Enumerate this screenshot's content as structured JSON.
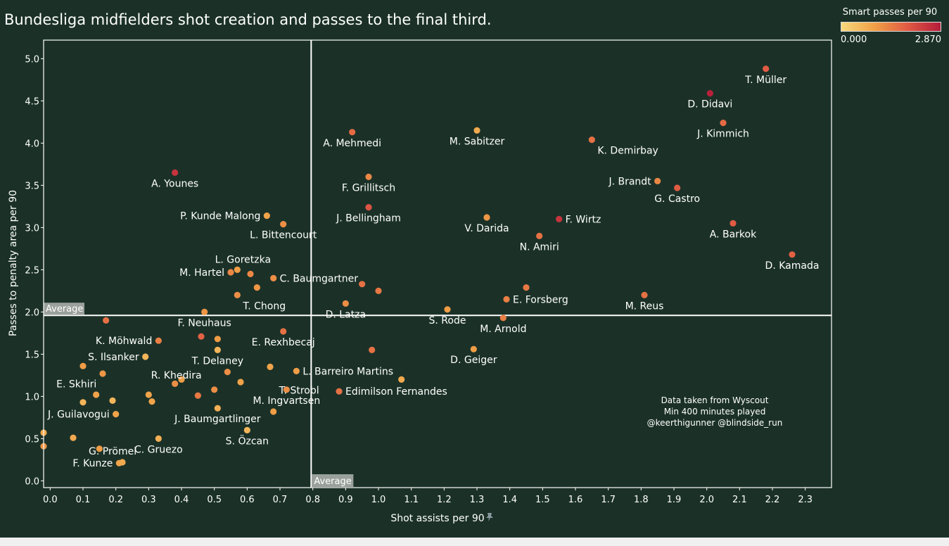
{
  "chart_data": {
    "type": "scatter",
    "title": "Bundesliga midfielders shot creation and passes to the final third.",
    "xlabel": "Shot assists per 90",
    "ylabel": "Passes to penalty area per 90",
    "xlim": [
      -0.02,
      2.38
    ],
    "ylim": [
      -0.08,
      5.22
    ],
    "xticks": [
      "0.0",
      "0.1",
      "0.2",
      "0.3",
      "0.4",
      "0.5",
      "0.6",
      "0.7",
      "0.8",
      "0.9",
      "1.0",
      "1.1",
      "1.2",
      "1.3",
      "1.4",
      "1.5",
      "1.6",
      "1.7",
      "1.8",
      "1.9",
      "2.0",
      "2.1",
      "2.2",
      "2.3"
    ],
    "yticks": [
      "0.0",
      "0.5",
      "1.0",
      "1.5",
      "2.0",
      "2.5",
      "3.0",
      "3.5",
      "4.0",
      "4.5",
      "5.0"
    ],
    "grid": false,
    "reference_lines": {
      "x_average": 0.795,
      "y_average": 1.96,
      "x_label": "Average",
      "y_label": "Average"
    },
    "color_scale": {
      "title": "Smart passes per 90",
      "min_label": "0.000",
      "max_label": "2.870",
      "min": 0,
      "max": 2.87,
      "colors": [
        "#f7d87c",
        "#f0a046",
        "#e05a43",
        "#b51c3a"
      ]
    },
    "annotation": [
      "Data taken from Wyscout",
      "Min 400 minutes played",
      "@keerthigunner @blindside_run"
    ],
    "points": [
      {
        "name": "T. Müller",
        "x": 2.18,
        "y": 4.88,
        "c": 1.9,
        "pos": "below"
      },
      {
        "name": "D. Didavi",
        "x": 2.01,
        "y": 4.59,
        "c": 2.8,
        "pos": "below"
      },
      {
        "name": "J. Kimmich",
        "x": 2.05,
        "y": 4.24,
        "c": 1.7,
        "pos": "below"
      },
      {
        "name": "K. Demirbay",
        "x": 1.65,
        "y": 4.04,
        "c": 1.6,
        "pos": "below-right"
      },
      {
        "name": "M. Sabitzer",
        "x": 1.3,
        "y": 4.15,
        "c": 0.8,
        "pos": "below"
      },
      {
        "name": "A. Mehmedi",
        "x": 0.92,
        "y": 4.13,
        "c": 1.7,
        "pos": "below"
      },
      {
        "name": "A. Younes",
        "x": 0.38,
        "y": 3.65,
        "c": 2.5,
        "pos": "below"
      },
      {
        "name": "J. Brandt",
        "x": 1.85,
        "y": 3.55,
        "c": 1.3,
        "pos": "left"
      },
      {
        "name": "G. Castro",
        "x": 1.91,
        "y": 3.47,
        "c": 1.9,
        "pos": "below"
      },
      {
        "name": "F. Grillitsch",
        "x": 0.97,
        "y": 3.6,
        "c": 1.3,
        "pos": "below"
      },
      {
        "name": "J. Bellingham",
        "x": 0.97,
        "y": 3.24,
        "c": 2.0,
        "pos": "below"
      },
      {
        "name": "P. Kunde Malong",
        "x": 0.66,
        "y": 3.14,
        "c": 0.9,
        "pos": "left"
      },
      {
        "name": "L. Bittencourt",
        "x": 0.71,
        "y": 3.04,
        "c": 1.2,
        "pos": "below"
      },
      {
        "name": "V. Darida",
        "x": 1.33,
        "y": 3.12,
        "c": 1.1,
        "pos": "below"
      },
      {
        "name": "F. Wirtz",
        "x": 1.55,
        "y": 3.1,
        "c": 2.5,
        "pos": "right"
      },
      {
        "name": "N. Amiri",
        "x": 1.49,
        "y": 2.9,
        "c": 1.6,
        "pos": "below"
      },
      {
        "name": "A. Barkok",
        "x": 2.08,
        "y": 3.05,
        "c": 1.9,
        "pos": "below"
      },
      {
        "name": "D. Kamada",
        "x": 2.26,
        "y": 2.68,
        "c": 1.8,
        "pos": "below"
      },
      {
        "name": "L. Goretzka",
        "x": 0.57,
        "y": 2.5,
        "c": 1.0,
        "pos": "above-right"
      },
      {
        "name": "M. Hartel",
        "x": 0.55,
        "y": 2.47,
        "c": 1.3,
        "pos": "left"
      },
      {
        "name": "",
        "x": 0.61,
        "y": 2.45,
        "c": 1.3,
        "pos": "none"
      },
      {
        "name": "C. Baumgartner",
        "x": 0.68,
        "y": 2.4,
        "c": 1.2,
        "pos": "right"
      },
      {
        "name": "",
        "x": 0.63,
        "y": 2.29,
        "c": 1.1,
        "pos": "none"
      },
      {
        "name": "T. Chong",
        "x": 0.57,
        "y": 2.2,
        "c": 1.2,
        "pos": "below-right"
      },
      {
        "name": "",
        "x": 0.95,
        "y": 2.33,
        "c": 1.6,
        "pos": "none"
      },
      {
        "name": "",
        "x": 1.0,
        "y": 2.25,
        "c": 1.5,
        "pos": "none"
      },
      {
        "name": "D. Latza",
        "x": 0.9,
        "y": 2.1,
        "c": 1.2,
        "pos": "below"
      },
      {
        "name": "E. Forsberg",
        "x": 1.39,
        "y": 2.15,
        "c": 1.4,
        "pos": "right"
      },
      {
        "name": "",
        "x": 1.45,
        "y": 2.29,
        "c": 1.5,
        "pos": "none"
      },
      {
        "name": "M. Reus",
        "x": 1.81,
        "y": 2.2,
        "c": 1.6,
        "pos": "below"
      },
      {
        "name": "S. Rode",
        "x": 1.21,
        "y": 2.03,
        "c": 1.0,
        "pos": "below"
      },
      {
        "name": "M. Arnold",
        "x": 1.38,
        "y": 1.93,
        "c": 1.4,
        "pos": "below"
      },
      {
        "name": "F. Neuhaus",
        "x": 0.47,
        "y": 2.0,
        "c": 1.1,
        "pos": "below"
      },
      {
        "name": "",
        "x": 0.17,
        "y": 1.9,
        "c": 1.6,
        "pos": "none"
      },
      {
        "name": "E. Rexhbecaj",
        "x": 0.71,
        "y": 1.77,
        "c": 1.6,
        "pos": "below"
      },
      {
        "name": "K. Möhwald",
        "x": 0.33,
        "y": 1.66,
        "c": 1.4,
        "pos": "left"
      },
      {
        "name": "",
        "x": 0.46,
        "y": 1.71,
        "c": 1.8,
        "pos": "none"
      },
      {
        "name": "",
        "x": 0.51,
        "y": 1.68,
        "c": 1.0,
        "pos": "none"
      },
      {
        "name": "T. Delaney",
        "x": 0.51,
        "y": 1.55,
        "c": 0.6,
        "pos": "below"
      },
      {
        "name": "",
        "x": 0.98,
        "y": 1.55,
        "c": 1.6,
        "pos": "none"
      },
      {
        "name": "D. Geiger",
        "x": 1.29,
        "y": 1.56,
        "c": 1.0,
        "pos": "below"
      },
      {
        "name": "S. Ilsanker",
        "x": 0.29,
        "y": 1.47,
        "c": 0.6,
        "pos": "left"
      },
      {
        "name": "R. Khedira",
        "x": 0.29,
        "y": 1.38,
        "c": 0.6,
        "pos": "label-only"
      },
      {
        "name": "",
        "x": 0.1,
        "y": 1.36,
        "c": 1.0,
        "pos": "none"
      },
      {
        "name": "",
        "x": 0.16,
        "y": 1.27,
        "c": 1.1,
        "pos": "none"
      },
      {
        "name": "",
        "x": 0.54,
        "y": 1.29,
        "c": 1.2,
        "pos": "none"
      },
      {
        "name": "",
        "x": 0.67,
        "y": 1.35,
        "c": 0.9,
        "pos": "none"
      },
      {
        "name": "L. Barreiro Martins",
        "x": 0.75,
        "y": 1.3,
        "c": 1.0,
        "pos": "right"
      },
      {
        "name": "T. Strobl",
        "x": 0.68,
        "y": 1.2,
        "c": 1.0,
        "pos": "label-only"
      },
      {
        "name": "",
        "x": 1.07,
        "y": 1.2,
        "c": 0.8,
        "pos": "none"
      },
      {
        "name": "E. Skhiri",
        "x": 0.24,
        "y": 1.15,
        "c": 0.8,
        "pos": "label-left-far"
      },
      {
        "name": "",
        "x": 0.38,
        "y": 1.15,
        "c": 1.2,
        "pos": "none"
      },
      {
        "name": "",
        "x": 0.4,
        "y": 1.2,
        "c": 1.0,
        "pos": "none"
      },
      {
        "name": "",
        "x": 0.58,
        "y": 1.17,
        "c": 0.9,
        "pos": "none"
      },
      {
        "name": "",
        "x": 0.14,
        "y": 1.02,
        "c": 0.9,
        "pos": "none"
      },
      {
        "name": "",
        "x": 0.3,
        "y": 1.02,
        "c": 0.9,
        "pos": "none"
      },
      {
        "name": "",
        "x": 0.45,
        "y": 1.01,
        "c": 1.5,
        "pos": "none"
      },
      {
        "name": "",
        "x": 0.5,
        "y": 1.08,
        "c": 1.2,
        "pos": "none"
      },
      {
        "name": "M. Ingvartsen",
        "x": 0.72,
        "y": 1.08,
        "c": 1.2,
        "pos": "below"
      },
      {
        "name": "Edimilson Fernandes",
        "x": 0.88,
        "y": 1.06,
        "c": 1.6,
        "pos": "right"
      },
      {
        "name": "",
        "x": 0.1,
        "y": 0.93,
        "c": 0.6,
        "pos": "none"
      },
      {
        "name": "",
        "x": 0.19,
        "y": 0.95,
        "c": 0.6,
        "pos": "none"
      },
      {
        "name": "",
        "x": 0.31,
        "y": 0.94,
        "c": 0.9,
        "pos": "none"
      },
      {
        "name": "J. Guilavogui",
        "x": 0.2,
        "y": 0.79,
        "c": 0.9,
        "pos": "left"
      },
      {
        "name": "J. Baumgartlinger",
        "x": 0.51,
        "y": 0.86,
        "c": 0.7,
        "pos": "below"
      },
      {
        "name": "",
        "x": 0.68,
        "y": 0.82,
        "c": 1.0,
        "pos": "none"
      },
      {
        "name": "G. Prömel",
        "x": 0.1,
        "y": 0.48,
        "c": 1.2,
        "pos": "label-only"
      },
      {
        "name": "",
        "x": -0.02,
        "y": 0.57,
        "c": 0.8,
        "pos": "none"
      },
      {
        "name": "",
        "x": 0.07,
        "y": 0.51,
        "c": 0.8,
        "pos": "none"
      },
      {
        "name": "",
        "x": -0.02,
        "y": 0.41,
        "c": 1.1,
        "pos": "none"
      },
      {
        "name": "S. Özcan",
        "x": 0.6,
        "y": 0.6,
        "c": 0.6,
        "pos": "below"
      },
      {
        "name": "C. Gruezo",
        "x": 0.33,
        "y": 0.5,
        "c": 0.7,
        "pos": "below"
      },
      {
        "name": "",
        "x": 0.15,
        "y": 0.38,
        "c": 1.0,
        "pos": "none"
      },
      {
        "name": "F. Kunze",
        "x": 0.21,
        "y": 0.21,
        "c": 0.9,
        "pos": "left"
      },
      {
        "name": "",
        "x": 0.22,
        "y": 0.22,
        "c": 0.8,
        "pos": "none"
      }
    ]
  }
}
